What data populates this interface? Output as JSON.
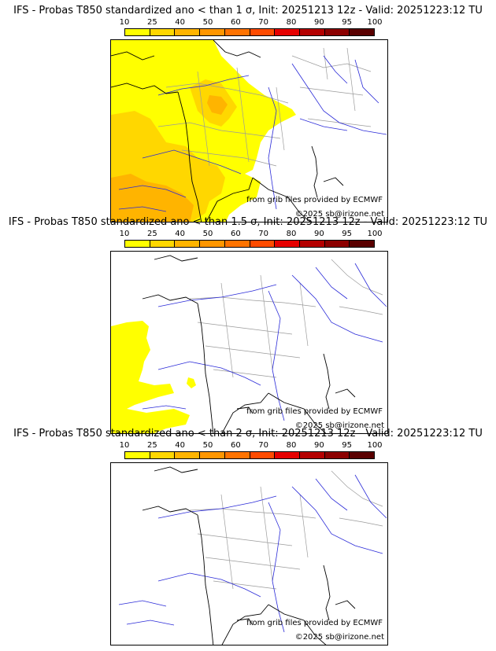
{
  "colorbar": {
    "ticks": [
      "10",
      "25",
      "40",
      "50",
      "60",
      "70",
      "80",
      "90",
      "95",
      "100"
    ],
    "colors": [
      "#ffff00",
      "#ffd700",
      "#ffb400",
      "#ff9600",
      "#ff7300",
      "#ff4b00",
      "#e60000",
      "#b40000",
      "#8c0000",
      "#5a0000"
    ]
  },
  "panels": [
    {
      "id": "p1",
      "title": "IFS - Probas T850  standardized ano < than 1 σ, Init: 20251213 12z - Valid: 20251223:12 TU"
    },
    {
      "id": "p2",
      "title": "IFS - Probas T850  standardized ano < than 1.5 σ, Init: 20251213 12z - Valid: 20251223:12 TU"
    },
    {
      "id": "p3",
      "title": "IFS - Probas T850  standardized ano < than 2 σ, Init: 20251213 12z - Valid: 20251223:12 TU"
    }
  ],
  "credits": {
    "source": "from grib files provided by ECMWF",
    "copyright": "©2025 sb@irizone.net"
  },
  "map_colors": {
    "coast": "#000000",
    "rivers": "#2a2ad8",
    "borders": "#9a9a9a",
    "prob_low": "#ffff00",
    "prob_mid": "#ffd700",
    "prob_high": "#ffb400"
  }
}
